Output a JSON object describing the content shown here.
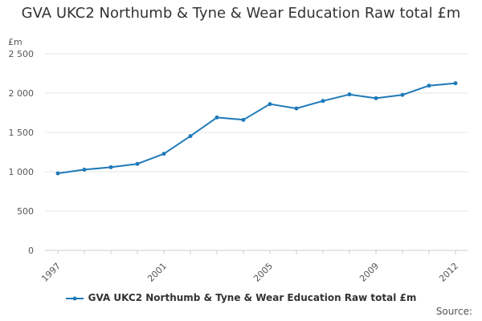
{
  "chart_data": {
    "type": "line",
    "title": "GVA UKC2 Northumb & Tyne & Wear Education Raw total £m",
    "ylabel": "£m",
    "xlabel": "",
    "x": [
      1997,
      1998,
      1999,
      2000,
      2001,
      2002,
      2003,
      2004,
      2005,
      2006,
      2007,
      2008,
      2009,
      2010,
      2011,
      2012
    ],
    "series": [
      {
        "name": "GVA UKC2 Northumb & Tyne & Wear Education Raw total £m",
        "values": [
          980,
          1027,
          1057,
          1100,
          1228,
          1453,
          1690,
          1660,
          1860,
          1805,
          1900,
          1983,
          1935,
          1977,
          2095,
          2125
        ]
      }
    ],
    "x_tick_labels": [
      "1997",
      "2001",
      "2005",
      "2009",
      "2012"
    ],
    "x_ticks": [
      1997,
      2001,
      2005,
      2009,
      2012
    ],
    "y_tick_labels": [
      "0",
      "500",
      "1 000",
      "1 500",
      "2 000",
      "2 500"
    ],
    "y_ticks": [
      0,
      500,
      1000,
      1500,
      2000,
      2500
    ],
    "ylim": [
      0,
      2500
    ],
    "grid": true,
    "legend_position": "bottom",
    "series_color": "#1f7ab8"
  },
  "source_label": "Source:"
}
